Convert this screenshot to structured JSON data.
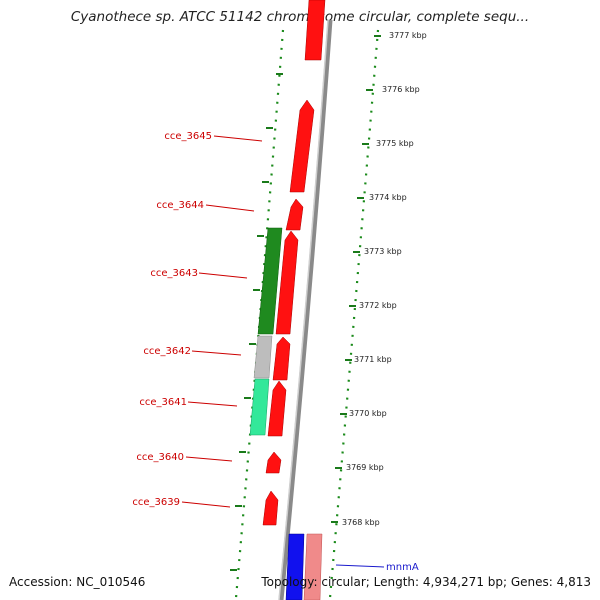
{
  "title": "Cyanothece sp. ATCC 51142 chromosome circular, complete sequ...",
  "footer": {
    "accession": "Accession: NC_010546",
    "summary": "Topology: circular; Length: 4,934,271 bp; Genes: 4,813"
  },
  "colors": {
    "forward_gene": "#ff1111",
    "reverse_gene": "#1f8a1f",
    "light_green_gene": "#33e89a",
    "gray_gene": "#bdbdbd",
    "blue_gene": "#1111ee",
    "pink_gene": "#f08a8a",
    "backbone": "#888888",
    "tick_marks": "#1a7a1a"
  },
  "ruler": {
    "ticks": [
      {
        "label": "3777 kbp"
      },
      {
        "label": "3776 kbp"
      },
      {
        "label": "3775 kbp"
      },
      {
        "label": "3774 kbp"
      },
      {
        "label": "3773 kbp"
      },
      {
        "label": "3772 kbp"
      },
      {
        "label": "3771 kbp"
      },
      {
        "label": "3770 kbp"
      },
      {
        "label": "3769 kbp"
      },
      {
        "label": "3768 kbp"
      }
    ]
  },
  "gene_labels": [
    {
      "name": "cce_3645"
    },
    {
      "name": "cce_3644"
    },
    {
      "name": "cce_3643"
    },
    {
      "name": "cce_3642"
    },
    {
      "name": "cce_3641"
    },
    {
      "name": "cce_3640"
    },
    {
      "name": "cce_3639"
    },
    {
      "name": "mnmA"
    }
  ]
}
